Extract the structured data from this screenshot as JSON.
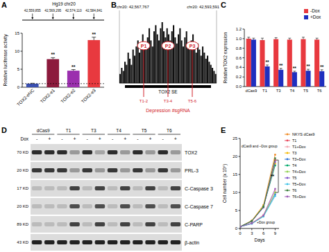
{
  "chart_data": [
    {
      "panel": "A",
      "type": "bar",
      "title": "Hg19 chr20",
      "coordinates": [
        "42,559,855",
        "42,569,295",
        "42,574,110",
        "42,584,841"
      ],
      "categories": [
        "TOX2-eNC",
        "TOX2-e1",
        "TOX2-e2",
        "TOX2-e3"
      ],
      "values": [
        1,
        7.8,
        4.6,
        13.1
      ],
      "errors": [
        0.1,
        0.4,
        0.3,
        0.8
      ],
      "colors": [
        "#3a4fb0",
        "#8c1a3c",
        "#9b2fae",
        "#e8393f"
      ],
      "y_label": "Relative luciferase activity",
      "ylim": [
        0,
        15
      ],
      "yticks": [
        0,
        5,
        10,
        15
      ],
      "reference_line": 1,
      "significance": [
        null,
        "**",
        "**",
        "**"
      ]
    },
    {
      "panel": "C",
      "type": "bar",
      "categories": [
        "dCas9",
        "T1",
        "T3",
        "T4",
        "T5",
        "T6"
      ],
      "series": [
        {
          "name": "-Dox",
          "color": "#e8393f",
          "values": [
            1,
            0.97,
            0.99,
            0.98,
            0.99,
            0.98
          ],
          "errors": [
            0.03,
            0.04,
            0.03,
            0.03,
            0.04,
            0.03
          ]
        },
        {
          "name": "+Dox",
          "color": "#1f2fbf",
          "values": [
            0.98,
            0.42,
            0.35,
            0.3,
            0.33,
            0.32
          ],
          "errors": [
            0.03,
            0.03,
            0.03,
            0.02,
            0.03,
            0.03
          ]
        }
      ],
      "significance": [
        null,
        "**",
        "**",
        "**",
        "**",
        "**"
      ],
      "y_label": "RelativeTOX2 expression",
      "ylim": [
        0,
        1.2
      ],
      "yticks": [
        {
          "value": 0,
          "label": "0.0"
        },
        0.2,
        0.4,
        0.6,
        0.8,
        {
          "value": 1,
          "label": "1.0"
        },
        1.2
      ],
      "legend": "top-right"
    },
    {
      "panel": "E",
      "type": "line",
      "x": [
        0,
        3,
        6,
        9
      ],
      "xlim": [
        0,
        10
      ],
      "xticks": [
        0,
        3,
        6,
        9
      ],
      "x_label": "Days",
      "y_label": "Cell number (x 10⁶)",
      "ylim": [
        0,
        25
      ],
      "yticks": [
        0,
        5,
        10,
        15,
        20,
        25
      ],
      "marker": "circle",
      "legend": "right",
      "annotations": [
        "dCas9 and –Dox group",
        "+Dox group",
        "**"
      ],
      "series": [
        {
          "name": "NKYS dCas9",
          "color": "#f08a24",
          "values": [
            0.5,
            2.2,
            6.5,
            20.5
          ]
        },
        {
          "name": "T1",
          "color": "#e84a5f",
          "values": [
            0.5,
            2.0,
            6.0,
            19
          ]
        },
        {
          "name": "T1+Dox",
          "color": "#f4a6b0",
          "values": [
            0.5,
            1.5,
            3.8,
            10.5
          ]
        },
        {
          "name": "T3",
          "color": "#f5b800",
          "values": [
            0.5,
            2.1,
            6.2,
            18
          ]
        },
        {
          "name": "T3+Dox",
          "color": "#2a6fd6",
          "values": [
            0.5,
            1.4,
            3.5,
            9.5
          ]
        },
        {
          "name": "T4",
          "color": "#00a86b",
          "values": [
            0.5,
            2.0,
            6.1,
            17.5
          ]
        },
        {
          "name": "T4+Dox",
          "color": "#8fd14f",
          "values": [
            0.5,
            1.4,
            3.4,
            10
          ]
        },
        {
          "name": "T5",
          "color": "#7b4fc9",
          "values": [
            0.5,
            2.0,
            5.8,
            18.5
          ]
        },
        {
          "name": "T5+Dox",
          "color": "#3cc1e6",
          "values": [
            0.5,
            1.3,
            3.3,
            9
          ]
        },
        {
          "name": "T6",
          "color": "#3a7d3a",
          "values": [
            0.5,
            2.1,
            6.0,
            19.5
          ]
        },
        {
          "name": "T6+Dox",
          "color": "#9b59b6",
          "values": [
            0.5,
            1.4,
            3.6,
            11
          ]
        }
      ]
    }
  ],
  "genome_track": {
    "panel": "B",
    "start_label": "chr20: 42,567,767",
    "end_label": "chr20: 42,593,591",
    "ylim": [
      0,
      1
    ],
    "signal": [
      0.15,
      0.25,
      0.2,
      0.35,
      0.3,
      0.5,
      0.4,
      0.3,
      0.55,
      0.45,
      0.6,
      0.7,
      0.5,
      0.65,
      0.8,
      0.6,
      0.55,
      0.75,
      0.9,
      0.7,
      0.6,
      0.85,
      0.95,
      0.8,
      0.7,
      0.9,
      1.0,
      0.85,
      0.75,
      0.9,
      0.8,
      0.7,
      0.85,
      0.95,
      0.75,
      0.65,
      0.8,
      0.9,
      0.7,
      0.6,
      0.75,
      0.85,
      0.65,
      0.55,
      0.7,
      0.8,
      0.6,
      0.5,
      0.65,
      0.55,
      0.45,
      0.6,
      0.5,
      0.4,
      0.45,
      0.35,
      0.3,
      0.25,
      0.2,
      0.15
    ],
    "element_label": "TOX2 SE",
    "sites": [
      {
        "name": "P1",
        "guides": "T1-2",
        "position": 0.25
      },
      {
        "name": "P2",
        "guides": "T3-4",
        "position": 0.5
      },
      {
        "name": "P3",
        "guides": "T5-6",
        "position": 0.75
      }
    ],
    "footer": "Depression #sgRNA"
  },
  "western_blot": {
    "panel": "D",
    "lanes": [
      "dCas9",
      "T1",
      "T3",
      "T4",
      "T5",
      "T6"
    ],
    "treatment_label": "Dox",
    "treatments": [
      "-",
      "+"
    ],
    "rows": [
      {
        "protein": "TOX2",
        "size": "70 KD",
        "intensity": [
          0.8,
          0.8,
          0.8,
          0.3,
          0.8,
          0.25,
          0.8,
          0.3,
          0.8,
          0.3,
          0.8,
          0.3
        ]
      },
      {
        "protein": "PRL-3",
        "size": "20 KD",
        "intensity": [
          0.75,
          0.75,
          0.75,
          0.3,
          0.75,
          0.3,
          0.75,
          0.3,
          0.75,
          0.3,
          0.75,
          0.3
        ]
      },
      {
        "protein": "C-Caspase 3",
        "size": "17 KD",
        "intensity": [
          0.15,
          0.15,
          0.15,
          0.7,
          0.15,
          0.7,
          0.15,
          0.7,
          0.15,
          0.7,
          0.15,
          0.7
        ]
      },
      {
        "protein": "C-Caspase 7",
        "size": "20 KD",
        "intensity": [
          0.15,
          0.15,
          0.15,
          0.65,
          0.15,
          0.65,
          0.15,
          0.65,
          0.15,
          0.65,
          0.15,
          0.65
        ]
      },
      {
        "protein": "C-PARP",
        "size": "89 KD",
        "intensity": [
          0.15,
          0.15,
          0.15,
          0.7,
          0.15,
          0.7,
          0.15,
          0.7,
          0.15,
          0.7,
          0.15,
          0.7
        ]
      },
      {
        "protein": "β-actin",
        "size": "43 KD",
        "intensity": [
          0.85,
          0.85,
          0.85,
          0.85,
          0.85,
          0.85,
          0.85,
          0.85,
          0.85,
          0.85,
          0.85,
          0.85
        ]
      }
    ]
  }
}
